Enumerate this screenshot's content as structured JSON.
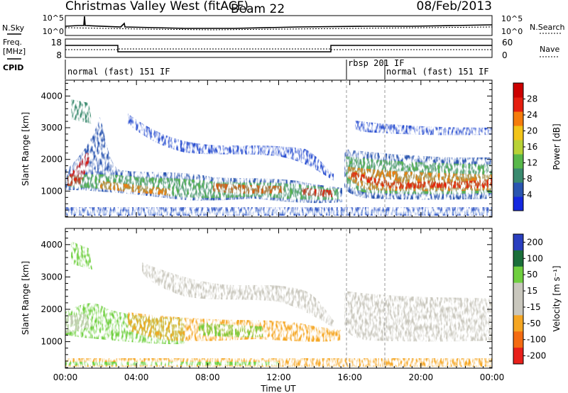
{
  "header": {
    "title": "Christmas Valley West (fitACF)",
    "beam": "Beam 22",
    "date": "08/Feb/2013"
  },
  "top_panels": {
    "nsky_label": "N.Sky",
    "nsearch_label": "N.Search",
    "noise_ticks": [
      "10^5",
      "10^0"
    ],
    "freq_label_line1": "Freq.",
    "freq_label_line2": "[MHz]",
    "freq_ticks": [
      "18",
      "8"
    ],
    "nave_label": "Nave",
    "nave_ticks": [
      "60",
      "0"
    ],
    "cpid_label": "CPID",
    "cpid_modes": [
      {
        "label": "normal (fast) 151 IF",
        "start_hour": 0.1
      },
      {
        "label": "rbsp 201 IF",
        "start_hour": 15.95
      },
      {
        "label": "normal (fast) 151 IF",
        "start_hour": 18.0
      }
    ]
  },
  "chart_data": [
    {
      "type": "heatmap",
      "name": "power",
      "xlabel": "",
      "ylabel": "Slant Range [km]",
      "xlim": [
        0,
        24
      ],
      "ylim": [
        180,
        4500
      ],
      "yticks": [
        1000,
        2000,
        3000,
        4000
      ],
      "colorbar": {
        "label": "Power [dB]",
        "tick_labels": [
          "4",
          "8",
          "12",
          "16",
          "20",
          "24",
          "28"
        ],
        "range": [
          0,
          32
        ],
        "colors": [
          "#1428e0",
          "#2a55b0",
          "#3a8a6e",
          "#58b84a",
          "#b8d236",
          "#f2c419",
          "#f57c0c",
          "#e51e0f",
          "#cc0000"
        ]
      },
      "features": [
        {
          "region": "main F-region echo band",
          "x_range": [
            0,
            15.5
          ],
          "y_range": [
            800,
            1700
          ],
          "level_db": "12-28"
        },
        {
          "region": "strong echo band after 16 UT",
          "x_range": [
            15.8,
            24
          ],
          "y_range": [
            900,
            1900
          ],
          "level_db": "16-28"
        },
        {
          "region": "far-range arc",
          "x_range": [
            3,
            13
          ],
          "y_range": [
            2400,
            3400
          ],
          "level_db": "4-10"
        },
        {
          "region": "near-range ground scatter",
          "x_range": [
            0,
            24
          ],
          "y_range": [
            180,
            400
          ],
          "level_db": "4-12"
        }
      ]
    },
    {
      "type": "heatmap",
      "name": "velocity",
      "xlabel": "Time UT",
      "ylabel": "Slant Range [km]",
      "xlim": [
        0,
        24
      ],
      "ylim": [
        180,
        4500
      ],
      "xtick_labels": [
        "00:00",
        "04:00",
        "08:00",
        "12:00",
        "16:00",
        "20:00",
        "00:00"
      ],
      "yticks": [
        1000,
        2000,
        3000,
        4000
      ],
      "colorbar": {
        "label": "Velocity [m s⁻¹]",
        "tick_labels": [
          "200",
          "100",
          "50",
          "15",
          "-15",
          "-50",
          "-100",
          "-200"
        ],
        "colors": [
          "#2a3fbf",
          "#1a6e3a",
          "#6fcf3f",
          "#c9c7bd",
          "#c9c7bd",
          "#f5a623",
          "#f46b12",
          "#e8201a"
        ]
      },
      "features": [
        {
          "region": "green band",
          "x_range": [
            0,
            8
          ],
          "y_range": [
            800,
            1600
          ],
          "velocity": "15 to 100"
        },
        {
          "region": "orange band",
          "x_range": [
            6,
            15
          ],
          "y_range": [
            800,
            1700
          ],
          "velocity": "-15 to -100"
        },
        {
          "region": "grey ground scatter",
          "x_range": [
            15.8,
            24
          ],
          "y_range": [
            900,
            2000
          ],
          "velocity": "-15 to 15"
        }
      ]
    }
  ]
}
